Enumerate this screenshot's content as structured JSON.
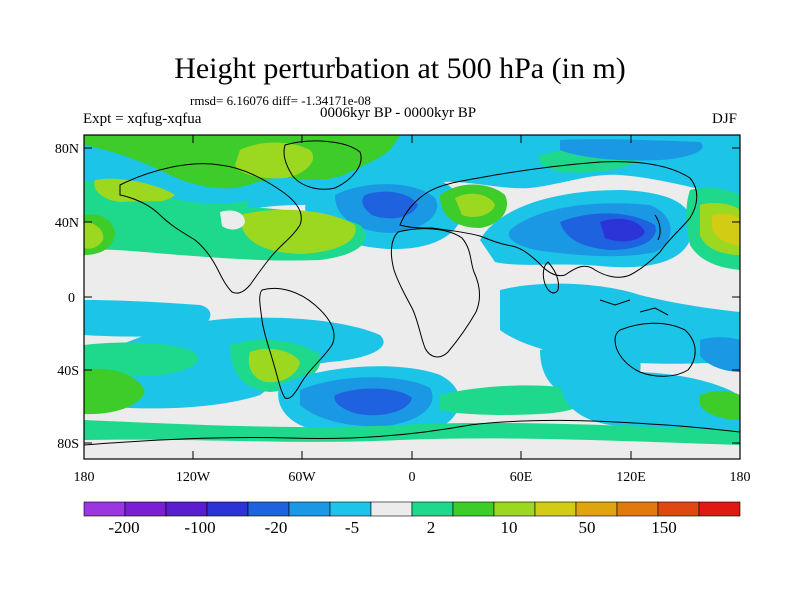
{
  "title": "Height perturbation at 500 hPa (in m)",
  "stats": "rmsd= 6.16076 diff= -1.34171e-08",
  "expt": "Expt = xqfug-xqfua",
  "period": "0006kyr BP - 0000kyr BP",
  "season": "DJF",
  "lat_labels": [
    "80N",
    "40N",
    "0",
    "40S",
    "80S"
  ],
  "lon_labels": [
    "180",
    "120W",
    "60W",
    "0",
    "60E",
    "120E",
    "180"
  ],
  "colorbar": {
    "colors": [
      "#9b36e0",
      "#7a1fd6",
      "#5a1ed0",
      "#2c34d7",
      "#1f62e0",
      "#1a98e4",
      "#1cc4e8",
      "#ececec",
      "#1ed88c",
      "#3ecc2a",
      "#9cd81f",
      "#d2cc14",
      "#e0a40e",
      "#e07a0a",
      "#e04812",
      "#e01a12"
    ],
    "labels": [
      "-200",
      "-100",
      "-20",
      "-5",
      "2",
      "10",
      "50",
      "150"
    ]
  }
}
